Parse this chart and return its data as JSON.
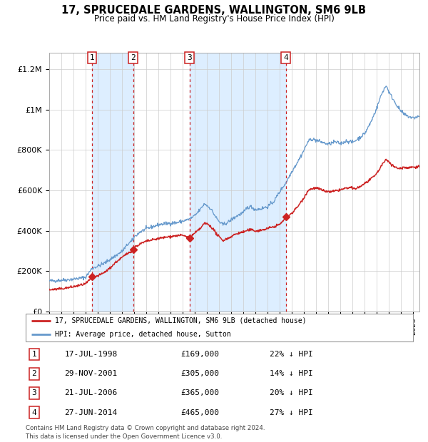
{
  "title": "17, SPRUCEDALE GARDENS, WALLINGTON, SM6 9LB",
  "subtitle": "Price paid vs. HM Land Registry's House Price Index (HPI)",
  "legend_line1": "17, SPRUCEDALE GARDENS, WALLINGTON, SM6 9LB (detached house)",
  "legend_line2": "HPI: Average price, detached house, Sutton",
  "transactions": [
    {
      "num": 1,
      "date": "17-JUL-1998",
      "price": 169000,
      "pct": "22% ↓ HPI",
      "year": 1998.54
    },
    {
      "num": 2,
      "date": "29-NOV-2001",
      "price": 305000,
      "pct": "14% ↓ HPI",
      "year": 2001.91
    },
    {
      "num": 3,
      "date": "21-JUL-2006",
      "price": 365000,
      "pct": "20% ↓ HPI",
      "year": 2006.55
    },
    {
      "num": 4,
      "date": "27-JUN-2014",
      "price": 465000,
      "pct": "27% ↓ HPI",
      "year": 2014.49
    }
  ],
  "footer_line1": "Contains HM Land Registry data © Crown copyright and database right 2024.",
  "footer_line2": "This data is licensed under the Open Government Licence v3.0.",
  "hpi_color": "#6699cc",
  "price_color": "#cc2222",
  "marker_color": "#cc2222",
  "plot_bg": "#ffffff",
  "grid_color": "#cccccc",
  "vline_color": "#cc2222",
  "shade_color": "#ddeeff",
  "ylim": [
    0,
    1280000
  ],
  "xlim_start": 1995.0,
  "xlim_end": 2025.5,
  "yticks": [
    0,
    200000,
    400000,
    600000,
    800000,
    1000000,
    1200000
  ],
  "ylabels": [
    "£0",
    "£200K",
    "£400K",
    "£600K",
    "£800K",
    "£1M",
    "£1.2M"
  ]
}
